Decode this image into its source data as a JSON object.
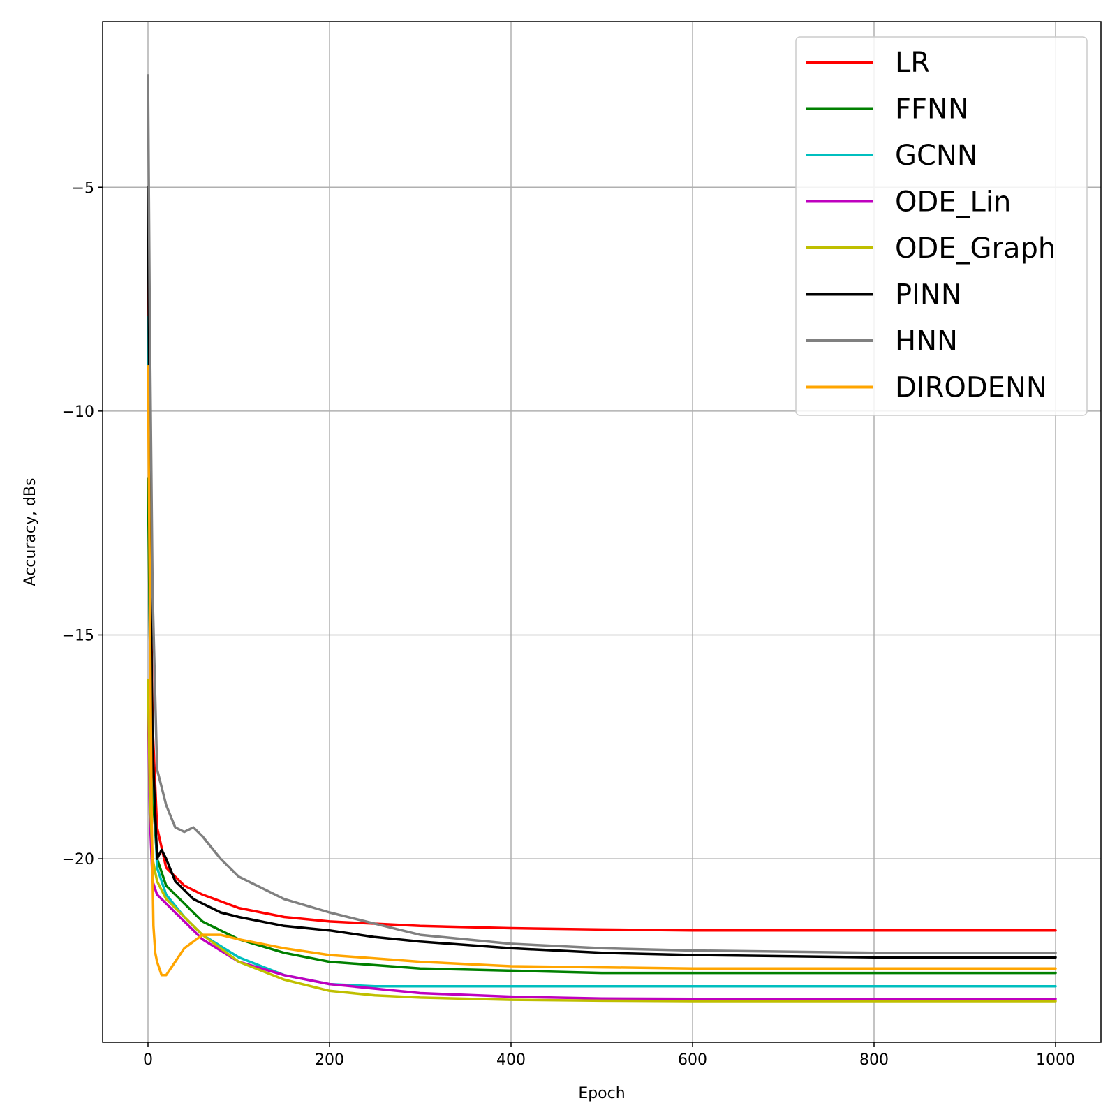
{
  "chart_data": {
    "type": "line",
    "title": "",
    "xlabel": "Epoch",
    "ylabel": "Accuracy, dBs",
    "xlim": [
      -50,
      1050
    ],
    "ylim": [
      -24.1,
      -1.3
    ],
    "xticks": [
      0,
      200,
      400,
      600,
      800,
      1000
    ],
    "xtick_labels": [
      "0",
      "200",
      "400",
      "600",
      "800",
      "1000"
    ],
    "yticks": [
      -5,
      -10,
      -15,
      -20
    ],
    "ytick_labels": [
      "−5",
      "−10",
      "−15",
      "−20"
    ],
    "grid": true,
    "legend_position": "top-right",
    "series": [
      {
        "name": "LR",
        "color": "#ff0000",
        "x": [
          0,
          2,
          5,
          10,
          20,
          40,
          60,
          100,
          150,
          200,
          300,
          400,
          500,
          600,
          800,
          1000
        ],
        "y": [
          -5.8,
          -12.0,
          -17.0,
          -19.3,
          -20.2,
          -20.6,
          -20.8,
          -21.1,
          -21.3,
          -21.4,
          -21.5,
          -21.55,
          -21.58,
          -21.6,
          -21.6,
          -21.6
        ]
      },
      {
        "name": "FFNN",
        "color": "#008000",
        "x": [
          0,
          2,
          5,
          10,
          20,
          40,
          60,
          100,
          150,
          200,
          300,
          400,
          500,
          600,
          800,
          1000
        ],
        "y": [
          -11.5,
          -15.0,
          -18.5,
          -20.0,
          -20.6,
          -21.0,
          -21.4,
          -21.8,
          -22.1,
          -22.3,
          -22.45,
          -22.5,
          -22.55,
          -22.55,
          -22.55,
          -22.55
        ]
      },
      {
        "name": "GCNN",
        "color": "#00bfbf",
        "x": [
          0,
          2,
          5,
          10,
          20,
          40,
          60,
          100,
          150,
          200,
          250,
          300,
          400,
          600,
          1000
        ],
        "y": [
          -7.9,
          -13.0,
          -17.5,
          -20.2,
          -20.8,
          -21.3,
          -21.7,
          -22.2,
          -22.6,
          -22.8,
          -22.85,
          -22.85,
          -22.85,
          -22.85,
          -22.85
        ]
      },
      {
        "name": "ODE_Lin",
        "color": "#bf00bf",
        "x": [
          0,
          2,
          5,
          10,
          20,
          40,
          60,
          100,
          150,
          200,
          250,
          300,
          400,
          500,
          600,
          800,
          1000
        ],
        "y": [
          -16.5,
          -19.0,
          -20.5,
          -20.8,
          -21.0,
          -21.4,
          -21.8,
          -22.3,
          -22.6,
          -22.8,
          -22.9,
          -23.0,
          -23.08,
          -23.12,
          -23.13,
          -23.13,
          -23.13
        ]
      },
      {
        "name": "ODE_Graph",
        "color": "#bfbf00",
        "x": [
          0,
          2,
          5,
          10,
          20,
          40,
          60,
          100,
          150,
          200,
          250,
          300,
          400,
          500,
          600,
          800,
          1000
        ],
        "y": [
          -16.0,
          -18.5,
          -20.0,
          -20.5,
          -20.9,
          -21.3,
          -21.7,
          -22.3,
          -22.7,
          -22.95,
          -23.05,
          -23.1,
          -23.15,
          -23.17,
          -23.18,
          -23.18,
          -23.18
        ]
      },
      {
        "name": "PINN",
        "color": "#000000",
        "x": [
          0,
          2,
          5,
          10,
          15,
          20,
          30,
          50,
          80,
          100,
          150,
          200,
          250,
          300,
          400,
          500,
          600,
          800,
          1000
        ],
        "y": [
          -5.0,
          -12.0,
          -17.5,
          -20.0,
          -19.8,
          -20.0,
          -20.5,
          -20.9,
          -21.2,
          -21.3,
          -21.5,
          -21.6,
          -21.75,
          -21.85,
          -22.0,
          -22.1,
          -22.15,
          -22.2,
          -22.2
        ]
      },
      {
        "name": "HNN",
        "color": "#808080",
        "x": [
          0,
          2,
          5,
          10,
          20,
          30,
          40,
          50,
          60,
          80,
          100,
          150,
          200,
          250,
          300,
          400,
          500,
          600,
          800,
          1000
        ],
        "y": [
          -2.5,
          -8.0,
          -14.0,
          -18.0,
          -18.8,
          -19.3,
          -19.4,
          -19.3,
          -19.5,
          -20.0,
          -20.4,
          -20.9,
          -21.2,
          -21.45,
          -21.7,
          -21.9,
          -22.0,
          -22.05,
          -22.1,
          -22.1
        ]
      },
      {
        "name": "DIRODENN",
        "color": "#ffa500",
        "x": [
          0,
          2,
          4,
          6,
          8,
          10,
          15,
          20,
          30,
          40,
          60,
          80,
          100,
          150,
          200,
          300,
          400,
          600,
          800,
          1000
        ],
        "y": [
          -9.0,
          -14.0,
          -19.0,
          -21.5,
          -22.1,
          -22.3,
          -22.6,
          -22.6,
          -22.3,
          -22.0,
          -21.7,
          -21.7,
          -21.8,
          -22.0,
          -22.15,
          -22.3,
          -22.4,
          -22.45,
          -22.45,
          -22.45
        ]
      }
    ]
  }
}
